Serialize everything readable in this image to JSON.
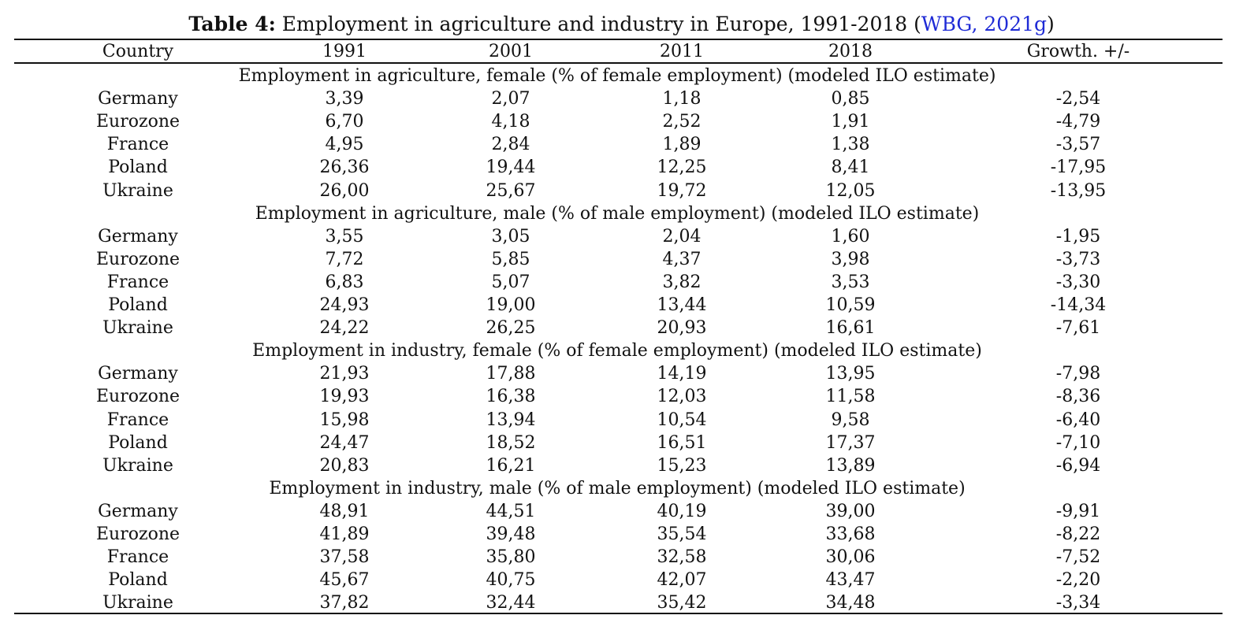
{
  "caption": {
    "label": "Table 4:",
    "text": " Employment in agriculture and industry in Europe, 1991-2018 (",
    "citation": "WBG, 2021g",
    "close": ")"
  },
  "header": [
    "Country",
    "1991",
    "2001",
    "2011",
    "2018",
    "Growth. +/-"
  ],
  "sections": [
    {
      "title": "Employment in agriculture, female (% of female employment) (modeled ILO estimate)",
      "rows": [
        [
          "Germany",
          "3,39",
          "2,07",
          "1,18",
          "0,85",
          "-2,54"
        ],
        [
          "Eurozone",
          "6,70",
          "4,18",
          "2,52",
          "1,91",
          "-4,79"
        ],
        [
          "France",
          "4,95",
          "2,84",
          "1,89",
          "1,38",
          "-3,57"
        ],
        [
          "Poland",
          "26,36",
          "19,44",
          "12,25",
          "8,41",
          "-17,95"
        ],
        [
          "Ukraine",
          "26,00",
          "25,67",
          "19,72",
          "12,05",
          "-13,95"
        ]
      ]
    },
    {
      "title": "Employment in agriculture, male (% of male employment) (modeled ILO estimate)",
      "rows": [
        [
          "Germany",
          "3,55",
          "3,05",
          "2,04",
          "1,60",
          "-1,95"
        ],
        [
          "Eurozone",
          "7,72",
          "5,85",
          "4,37",
          "3,98",
          "-3,73"
        ],
        [
          "France",
          "6,83",
          "5,07",
          "3,82",
          "3,53",
          "-3,30"
        ],
        [
          "Poland",
          "24,93",
          "19,00",
          "13,44",
          "10,59",
          "-14,34"
        ],
        [
          "Ukraine",
          "24,22",
          "26,25",
          "20,93",
          "16,61",
          "-7,61"
        ]
      ]
    },
    {
      "title": "Employment in industry, female (% of female employment) (modeled ILO estimate)",
      "rows": [
        [
          "Germany",
          "21,93",
          "17,88",
          "14,19",
          "13,95",
          "-7,98"
        ],
        [
          "Eurozone",
          "19,93",
          "16,38",
          "12,03",
          "11,58",
          "-8,36"
        ],
        [
          "France",
          "15,98",
          "13,94",
          "10,54",
          "9,58",
          "-6,40"
        ],
        [
          "Poland",
          "24,47",
          "18,52",
          "16,51",
          "17,37",
          "-7,10"
        ],
        [
          "Ukraine",
          "20,83",
          "16,21",
          "15,23",
          "13,89",
          "-6,94"
        ]
      ]
    },
    {
      "title": "Employment in industry, male (% of male employment) (modeled ILO estimate)",
      "rows": [
        [
          "Germany",
          "48,91",
          "44,51",
          "40,19",
          "39,00",
          "-9,91"
        ],
        [
          "Eurozone",
          "41,89",
          "39,48",
          "35,54",
          "33,68",
          "-8,22"
        ],
        [
          "France",
          "37,58",
          "35,80",
          "32,58",
          "30,06",
          "-7,52"
        ],
        [
          "Poland",
          "45,67",
          "40,75",
          "42,07",
          "43,47",
          "-2,20"
        ],
        [
          "Ukraine",
          "37,82",
          "32,44",
          "35,42",
          "34,48",
          "-3,34"
        ]
      ]
    }
  ]
}
